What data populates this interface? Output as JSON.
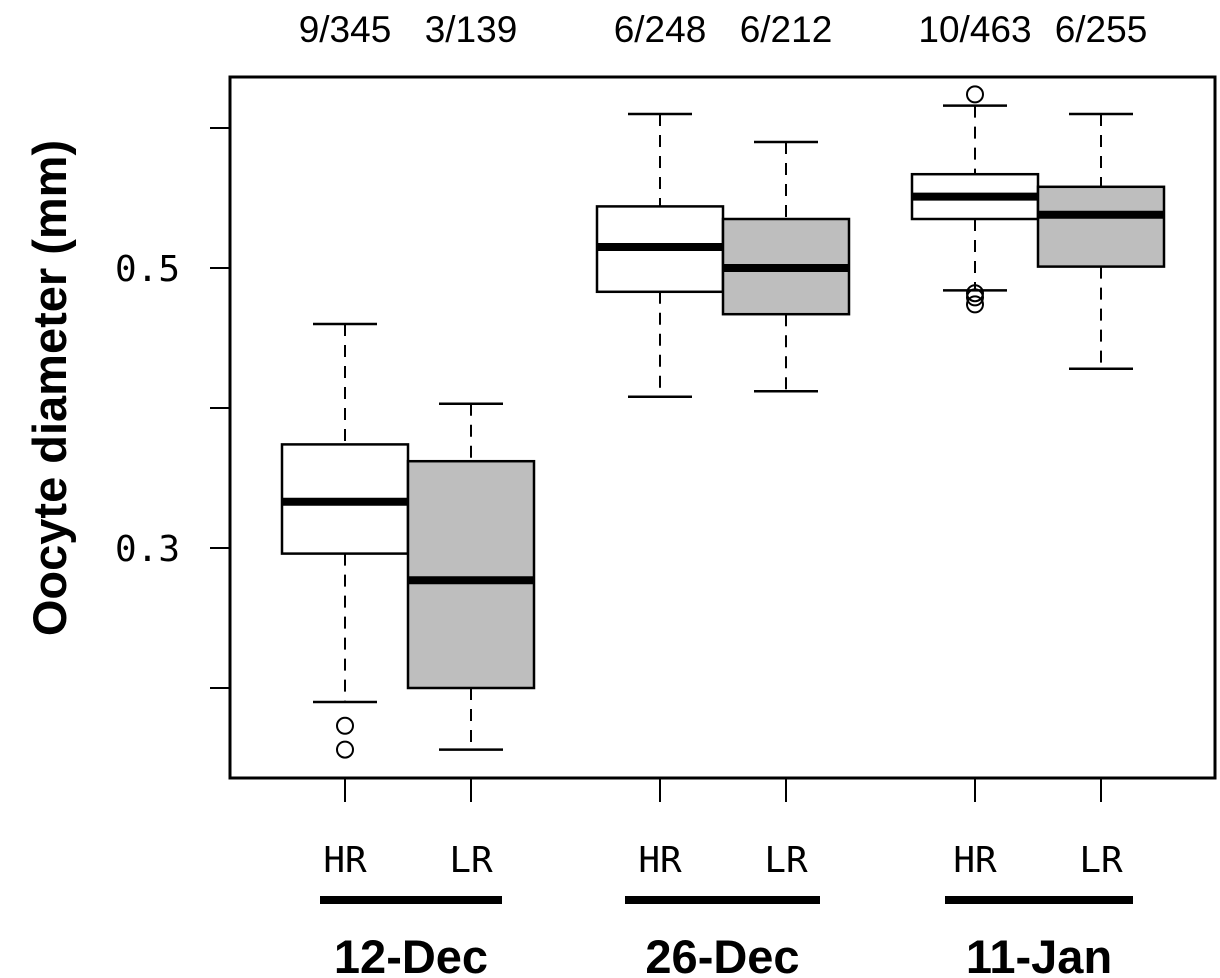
{
  "chart_data": {
    "type": "box",
    "ylabel": "Oocyte diameter (mm)",
    "xlabel": "",
    "ylim": [
      0.13,
      0.62
    ],
    "yticks": [
      0.2,
      0.3,
      0.4,
      0.5,
      0.6
    ],
    "ytick_labels": [
      "",
      "0.3",
      "",
      "0.5",
      ""
    ],
    "grid": false,
    "legend": false,
    "colors": {
      "HR": "#ffffff",
      "LR": "#bebebe",
      "stroke": "#000000"
    },
    "groups": [
      {
        "name": "12-Dec",
        "boxes": [
          {
            "category": "HR",
            "count_label": "9/345",
            "whisker_low": 0.19,
            "q1": 0.296,
            "median": 0.333,
            "q3": 0.374,
            "whisker_high": 0.46,
            "outliers": [
              0.173,
              0.156
            ]
          },
          {
            "category": "LR",
            "count_label": "3/139",
            "whisker_low": 0.156,
            "q1": 0.2,
            "median": 0.277,
            "q3": 0.362,
            "whisker_high": 0.403,
            "outliers": []
          }
        ]
      },
      {
        "name": "26-Dec",
        "boxes": [
          {
            "category": "HR",
            "count_label": "6/248",
            "whisker_low": 0.408,
            "q1": 0.483,
            "median": 0.515,
            "q3": 0.544,
            "whisker_high": 0.61,
            "outliers": []
          },
          {
            "category": "LR",
            "count_label": "6/212",
            "whisker_low": 0.412,
            "q1": 0.467,
            "median": 0.5,
            "q3": 0.535,
            "whisker_high": 0.59,
            "outliers": []
          }
        ]
      },
      {
        "name": "11-Jan",
        "boxes": [
          {
            "category": "HR",
            "count_label": "10/463",
            "whisker_low": 0.484,
            "q1": 0.535,
            "median": 0.551,
            "q3": 0.567,
            "whisker_high": 0.616,
            "outliers": [
              0.624,
              0.482,
              0.479,
              0.474
            ]
          },
          {
            "category": "LR",
            "count_label": "6/255",
            "whisker_low": 0.428,
            "q1": 0.501,
            "median": 0.538,
            "q3": 0.558,
            "whisker_high": 0.61,
            "outliers": []
          }
        ]
      }
    ]
  }
}
